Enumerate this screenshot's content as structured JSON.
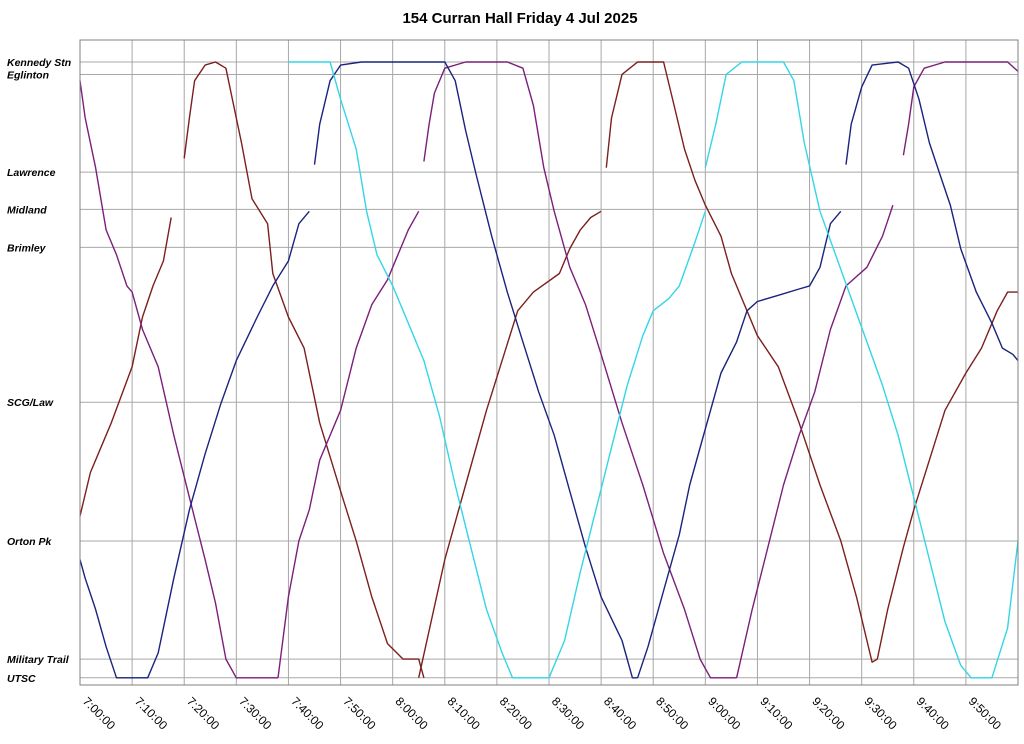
{
  "chart_data": {
    "type": "line",
    "title": "154 Curran Hall Friday 4 Jul 2025",
    "x_ticks": [
      "7:00:00",
      "7:10:00",
      "7:20:00",
      "7:30:00",
      "7:40:00",
      "7:50:00",
      "8:00:00",
      "8:10:00",
      "8:20:00",
      "8:30:00",
      "8:40:00",
      "8:50:00",
      "9:00:00",
      "9:10:00",
      "9:20:00",
      "9:30:00",
      "9:40:00",
      "9:50:00"
    ],
    "xlim": [
      "7:00:00",
      "10:00:00"
    ],
    "y_stops": [
      {
        "label": "Kennedy Stn",
        "pos": 0.0
      },
      {
        "label": "Eglinton",
        "pos": 0.02
      },
      {
        "label": "Lawrence",
        "pos": 0.177
      },
      {
        "label": "Midland",
        "pos": 0.237
      },
      {
        "label": "Brimley",
        "pos": 0.298
      },
      {
        "label": "SCG/Law",
        "pos": 0.547
      },
      {
        "label": "Orton Pk",
        "pos": 0.77
      },
      {
        "label": "Military Trail",
        "pos": 0.96
      },
      {
        "label": "UTSC",
        "pos": 0.99
      }
    ],
    "grid": true,
    "series": [
      {
        "color": "#7b1f1f",
        "points": [
          [
            "7:00:00",
            0.73
          ],
          [
            "7:02:00",
            0.66
          ],
          [
            "7:06:00",
            0.58
          ],
          [
            "7:10:00",
            0.49
          ],
          [
            "7:12:00",
            0.41
          ],
          [
            "7:14:00",
            0.36
          ],
          [
            "7:16:00",
            0.32
          ],
          [
            "7:17:30",
            0.25
          ]
        ]
      },
      {
        "color": "#7b1f1f",
        "points": [
          [
            "7:20:00",
            0.155
          ],
          [
            "7:21:00",
            0.09
          ],
          [
            "7:22:00",
            0.03
          ],
          [
            "7:24:00",
            0.005
          ],
          [
            "7:26:00",
            0.0
          ],
          [
            "7:28:00",
            0.01
          ],
          [
            "7:29:00",
            0.05
          ],
          [
            "7:31:00",
            0.13
          ],
          [
            "7:33:00",
            0.22
          ],
          [
            "7:36:00",
            0.26
          ],
          [
            "7:37:00",
            0.34
          ],
          [
            "7:40:00",
            0.41
          ],
          [
            "7:43:00",
            0.46
          ],
          [
            "7:46:00",
            0.58
          ],
          [
            "7:50:00",
            0.69
          ],
          [
            "7:53:00",
            0.77
          ],
          [
            "7:56:00",
            0.86
          ],
          [
            "7:59:00",
            0.935
          ],
          [
            "8:02:00",
            0.96
          ],
          [
            "8:05:00",
            0.96
          ],
          [
            "8:06:00",
            0.99
          ]
        ]
      },
      {
        "color": "#7b1f1f",
        "points": [
          [
            "8:05:00",
            0.99
          ],
          [
            "8:10:00",
            0.8
          ],
          [
            "8:14:00",
            0.68
          ],
          [
            "8:18:00",
            0.56
          ],
          [
            "8:21:00",
            0.48
          ],
          [
            "8:24:00",
            0.4
          ],
          [
            "8:27:00",
            0.37
          ],
          [
            "8:32:00",
            0.34
          ],
          [
            "8:34:00",
            0.3
          ],
          [
            "8:36:00",
            0.27
          ],
          [
            "8:38:00",
            0.25
          ],
          [
            "8:40:00",
            0.24
          ]
        ]
      },
      {
        "color": "#7b1f1f",
        "points": [
          [
            "8:41:00",
            0.17
          ],
          [
            "8:42:00",
            0.09
          ],
          [
            "8:44:00",
            0.02
          ],
          [
            "8:47:00",
            0.0
          ],
          [
            "8:52:00",
            0.0
          ],
          [
            "8:54:00",
            0.07
          ],
          [
            "8:56:00",
            0.14
          ],
          [
            "8:58:00",
            0.19
          ],
          [
            "9:00:00",
            0.23
          ],
          [
            "9:03:00",
            0.28
          ],
          [
            "9:05:00",
            0.34
          ],
          [
            "9:10:00",
            0.44
          ],
          [
            "9:14:00",
            0.49
          ],
          [
            "9:18:00",
            0.58
          ],
          [
            "9:22:00",
            0.68
          ],
          [
            "9:26:00",
            0.77
          ],
          [
            "9:29:00",
            0.86
          ],
          [
            "9:31:00",
            0.93
          ],
          [
            "9:32:00",
            0.965
          ],
          [
            "9:33:00",
            0.96
          ]
        ]
      },
      {
        "color": "#7b1f1f",
        "points": [
          [
            "9:33:00",
            0.96
          ],
          [
            "9:35:00",
            0.88
          ],
          [
            "9:38:00",
            0.78
          ],
          [
            "9:40:00",
            0.72
          ],
          [
            "9:43:00",
            0.64
          ],
          [
            "9:46:00",
            0.56
          ],
          [
            "9:50:00",
            0.5
          ],
          [
            "9:53:00",
            0.46
          ],
          [
            "9:56:00",
            0.4
          ],
          [
            "9:58:00",
            0.37
          ],
          [
            "10:00:00",
            0.37
          ]
        ]
      },
      {
        "color": "#7b1f7b",
        "points": [
          [
            "7:00:00",
            0.03
          ],
          [
            "7:01:00",
            0.09
          ],
          [
            "7:03:00",
            0.17
          ],
          [
            "7:05:00",
            0.27
          ],
          [
            "7:07:00",
            0.31
          ],
          [
            "7:09:00",
            0.36
          ],
          [
            "7:10:00",
            0.37
          ],
          [
            "7:12:00",
            0.43
          ],
          [
            "7:15:00",
            0.49
          ],
          [
            "7:18:00",
            0.6
          ],
          [
            "7:21:00",
            0.7
          ],
          [
            "7:24:00",
            0.8
          ],
          [
            "7:26:00",
            0.87
          ],
          [
            "7:28:00",
            0.96
          ],
          [
            "7:30:00",
            0.99
          ],
          [
            "7:38:00",
            0.99
          ]
        ]
      },
      {
        "color": "#7b1f7b",
        "points": [
          [
            "7:38:00",
            0.99
          ],
          [
            "7:40:00",
            0.86
          ],
          [
            "7:42:00",
            0.77
          ],
          [
            "7:44:00",
            0.72
          ],
          [
            "7:46:00",
            0.64
          ],
          [
            "7:50:00",
            0.56
          ],
          [
            "7:53:00",
            0.46
          ],
          [
            "7:56:00",
            0.39
          ],
          [
            "7:59:00",
            0.35
          ],
          [
            "8:01:00",
            0.31
          ],
          [
            "8:03:00",
            0.27
          ],
          [
            "8:05:00",
            0.24
          ]
        ]
      },
      {
        "color": "#7b1f7b",
        "points": [
          [
            "8:06:00",
            0.16
          ],
          [
            "8:07:00",
            0.1
          ],
          [
            "8:08:00",
            0.05
          ],
          [
            "8:10:00",
            0.01
          ],
          [
            "8:14:00",
            0.0
          ],
          [
            "8:22:00",
            0.0
          ],
          [
            "8:25:00",
            0.01
          ],
          [
            "8:27:00",
            0.07
          ],
          [
            "8:29:00",
            0.17
          ],
          [
            "8:31:00",
            0.24
          ],
          [
            "8:34:00",
            0.33
          ],
          [
            "8:37:00",
            0.39
          ],
          [
            "8:40:00",
            0.47
          ],
          [
            "8:44:00",
            0.58
          ],
          [
            "8:48:00",
            0.68
          ],
          [
            "8:52:00",
            0.79
          ],
          [
            "8:56:00",
            0.88
          ],
          [
            "8:59:00",
            0.96
          ],
          [
            "9:01:00",
            0.99
          ],
          [
            "9:06:00",
            0.99
          ]
        ]
      },
      {
        "color": "#7b1f7b",
        "points": [
          [
            "9:06:00",
            0.99
          ],
          [
            "9:09:00",
            0.88
          ],
          [
            "9:12:00",
            0.78
          ],
          [
            "9:15:00",
            0.68
          ],
          [
            "9:18:00",
            0.6
          ],
          [
            "9:21:00",
            0.53
          ],
          [
            "9:24:00",
            0.43
          ],
          [
            "9:27:00",
            0.36
          ],
          [
            "9:31:00",
            0.33
          ],
          [
            "9:34:00",
            0.28
          ],
          [
            "9:36:00",
            0.23
          ]
        ]
      },
      {
        "color": "#7b1f7b",
        "points": [
          [
            "9:38:00",
            0.15
          ],
          [
            "9:39:00",
            0.1
          ],
          [
            "9:40:00",
            0.04
          ],
          [
            "9:42:00",
            0.01
          ],
          [
            "9:46:00",
            0.0
          ],
          [
            "9:58:00",
            0.0
          ],
          [
            "10:00:00",
            0.015
          ]
        ]
      },
      {
        "color": "#1a237e",
        "points": [
          [
            "7:00:00",
            0.8
          ],
          [
            "7:01:00",
            0.83
          ],
          [
            "7:03:00",
            0.88
          ],
          [
            "7:05:00",
            0.94
          ],
          [
            "7:07:00",
            0.99
          ],
          [
            "7:13:00",
            0.99
          ],
          [
            "7:15:00",
            0.95
          ],
          [
            "7:18:00",
            0.83
          ],
          [
            "7:21:00",
            0.72
          ],
          [
            "7:24:00",
            0.63
          ],
          [
            "7:27:00",
            0.55
          ],
          [
            "7:30:00",
            0.48
          ],
          [
            "7:34:00",
            0.41
          ],
          [
            "7:37:00",
            0.36
          ],
          [
            "7:40:00",
            0.32
          ],
          [
            "7:42:00",
            0.26
          ],
          [
            "7:44:00",
            0.24
          ]
        ]
      },
      {
        "color": "#1a237e",
        "points": [
          [
            "7:45:00",
            0.165
          ],
          [
            "7:46:00",
            0.1
          ],
          [
            "7:48:00",
            0.03
          ],
          [
            "7:50:00",
            0.005
          ],
          [
            "7:54:00",
            0.0
          ],
          [
            "8:10:00",
            0.0
          ],
          [
            "8:12:00",
            0.03
          ],
          [
            "8:14:00",
            0.11
          ],
          [
            "8:16:00",
            0.18
          ],
          [
            "8:19:00",
            0.28
          ],
          [
            "8:22:00",
            0.37
          ],
          [
            "8:25:00",
            0.45
          ],
          [
            "8:28:00",
            0.53
          ],
          [
            "8:31:00",
            0.6
          ],
          [
            "8:34:00",
            0.69
          ],
          [
            "8:37:00",
            0.78
          ],
          [
            "8:40:00",
            0.86
          ],
          [
            "8:44:00",
            0.93
          ],
          [
            "8:46:00",
            0.99
          ],
          [
            "8:47:00",
            0.99
          ]
        ]
      },
      {
        "color": "#1a237e",
        "points": [
          [
            "8:47:00",
            0.99
          ],
          [
            "8:49:00",
            0.94
          ],
          [
            "8:52:00",
            0.85
          ],
          [
            "8:55:00",
            0.76
          ],
          [
            "8:57:00",
            0.68
          ],
          [
            "9:00:00",
            0.59
          ],
          [
            "9:03:00",
            0.5
          ],
          [
            "9:06:00",
            0.45
          ],
          [
            "9:08:00",
            0.4
          ],
          [
            "9:10:00",
            0.385
          ],
          [
            "9:14:00",
            0.375
          ],
          [
            "9:18:00",
            0.365
          ],
          [
            "9:20:00",
            0.36
          ],
          [
            "9:22:00",
            0.33
          ],
          [
            "9:24:00",
            0.26
          ],
          [
            "9:26:00",
            0.24
          ]
        ]
      },
      {
        "color": "#1a237e",
        "points": [
          [
            "9:27:00",
            0.165
          ],
          [
            "9:28:00",
            0.1
          ],
          [
            "9:30:00",
            0.04
          ],
          [
            "9:32:00",
            0.005
          ],
          [
            "9:37:00",
            0.0
          ],
          [
            "9:39:00",
            0.01
          ],
          [
            "9:41:00",
            0.06
          ],
          [
            "9:43:00",
            0.13
          ],
          [
            "9:45:00",
            0.18
          ],
          [
            "9:47:00",
            0.23
          ],
          [
            "9:49:00",
            0.3
          ],
          [
            "9:52:00",
            0.37
          ],
          [
            "9:55:00",
            0.42
          ],
          [
            "9:57:00",
            0.46
          ],
          [
            "9:59:00",
            0.47
          ],
          [
            "10:00:00",
            0.48
          ]
        ]
      },
      {
        "color": "#33d6e6",
        "points": [
          [
            "7:40:00",
            0.0
          ],
          [
            "7:48:00",
            0.0
          ],
          [
            "7:50:00",
            0.06
          ],
          [
            "7:53:00",
            0.14
          ],
          [
            "7:55:00",
            0.24
          ],
          [
            "7:57:00",
            0.31
          ],
          [
            "8:00:00",
            0.36
          ],
          [
            "8:03:00",
            0.42
          ],
          [
            "8:06:00",
            0.48
          ],
          [
            "8:09:00",
            0.57
          ],
          [
            "8:12:00",
            0.68
          ],
          [
            "8:15:00",
            0.78
          ],
          [
            "8:18:00",
            0.88
          ],
          [
            "8:21:00",
            0.95
          ],
          [
            "8:23:00",
            0.99
          ],
          [
            "8:30:00",
            0.99
          ],
          [
            "8:33:00",
            0.93
          ],
          [
            "8:36:00",
            0.82
          ],
          [
            "8:39:00",
            0.72
          ],
          [
            "8:42:00",
            0.62
          ],
          [
            "8:45:00",
            0.52
          ],
          [
            "8:48:00",
            0.44
          ],
          [
            "8:50:00",
            0.4
          ],
          [
            "8:53:00",
            0.38
          ],
          [
            "8:55:00",
            0.36
          ],
          [
            "8:58:00",
            0.29
          ],
          [
            "9:00:00",
            0.24
          ]
        ]
      },
      {
        "color": "#33d6e6",
        "points": [
          [
            "9:00:00",
            0.17
          ],
          [
            "9:02:00",
            0.1
          ],
          [
            "9:04:00",
            0.02
          ],
          [
            "9:07:00",
            0.0
          ],
          [
            "9:15:00",
            0.0
          ],
          [
            "9:17:00",
            0.03
          ],
          [
            "9:19:00",
            0.13
          ],
          [
            "9:22:00",
            0.24
          ],
          [
            "9:25:00",
            0.31
          ],
          [
            "9:28:00",
            0.38
          ],
          [
            "9:31:00",
            0.45
          ],
          [
            "9:34:00",
            0.52
          ],
          [
            "9:37:00",
            0.6
          ],
          [
            "9:40:00",
            0.7
          ],
          [
            "9:43:00",
            0.8
          ],
          [
            "9:46:00",
            0.9
          ],
          [
            "9:49:00",
            0.97
          ],
          [
            "9:51:00",
            0.99
          ],
          [
            "9:55:00",
            0.99
          ],
          [
            "9:58:00",
            0.91
          ],
          [
            "10:00:00",
            0.77
          ]
        ]
      }
    ]
  }
}
